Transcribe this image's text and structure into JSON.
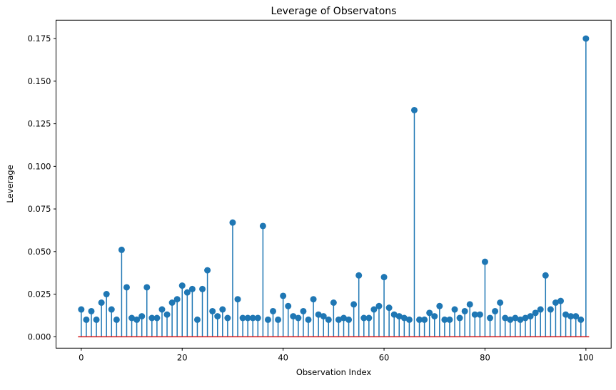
{
  "figure": {
    "background": "#ffffff",
    "title": "Leverage of Observatons",
    "xlabel": "Observation Index",
    "ylabel": "Leverage"
  },
  "chart_data": {
    "type": "stem",
    "title": "Leverage of Observatons",
    "xlabel": "Observation Index",
    "ylabel": "Leverage",
    "legend": null,
    "grid": false,
    "xlim": [
      -5,
      105
    ],
    "ylim": [
      -0.0067,
      0.1858
    ],
    "xtick_labels": [
      "0",
      "20",
      "40",
      "60",
      "80",
      "100"
    ],
    "xtick_values": [
      0,
      20,
      40,
      60,
      80,
      100
    ],
    "ytick_labels": [
      "0.000",
      "0.025",
      "0.050",
      "0.075",
      "0.100",
      "0.125",
      "0.150",
      "0.175"
    ],
    "ytick_values": [
      0.0,
      0.025,
      0.05,
      0.075,
      0.1,
      0.125,
      0.15,
      0.175
    ],
    "stem_color": "#1f77b4",
    "marker_color": "#1f77b4",
    "baseline_color": "#d62728",
    "baseline_value": 0.0,
    "x": [
      0,
      1,
      2,
      3,
      4,
      5,
      6,
      7,
      8,
      9,
      10,
      11,
      12,
      13,
      14,
      15,
      16,
      17,
      18,
      19,
      20,
      21,
      22,
      23,
      24,
      25,
      26,
      27,
      28,
      29,
      30,
      31,
      32,
      33,
      34,
      35,
      36,
      37,
      38,
      39,
      40,
      41,
      42,
      43,
      44,
      45,
      46,
      47,
      48,
      49,
      50,
      51,
      52,
      53,
      54,
      55,
      56,
      57,
      58,
      59,
      60,
      61,
      62,
      63,
      64,
      65,
      66,
      67,
      68,
      69,
      70,
      71,
      72,
      73,
      74,
      75,
      76,
      77,
      78,
      79,
      80,
      81,
      82,
      83,
      84,
      85,
      86,
      87,
      88,
      89,
      90,
      91,
      92,
      93,
      94,
      95,
      96,
      97,
      98,
      99,
      100
    ],
    "values": [
      0.016,
      0.01,
      0.015,
      0.01,
      0.02,
      0.025,
      0.016,
      0.01,
      0.051,
      0.029,
      0.011,
      0.01,
      0.012,
      0.029,
      0.011,
      0.011,
      0.016,
      0.013,
      0.02,
      0.022,
      0.03,
      0.026,
      0.028,
      0.01,
      0.028,
      0.039,
      0.015,
      0.012,
      0.016,
      0.011,
      0.067,
      0.022,
      0.011,
      0.011,
      0.011,
      0.011,
      0.065,
      0.01,
      0.015,
      0.01,
      0.024,
      0.018,
      0.012,
      0.011,
      0.015,
      0.01,
      0.022,
      0.013,
      0.012,
      0.01,
      0.02,
      0.01,
      0.011,
      0.01,
      0.019,
      0.036,
      0.011,
      0.011,
      0.016,
      0.018,
      0.035,
      0.017,
      0.013,
      0.012,
      0.011,
      0.01,
      0.133,
      0.01,
      0.01,
      0.014,
      0.012,
      0.018,
      0.01,
      0.01,
      0.016,
      0.011,
      0.015,
      0.019,
      0.013,
      0.013,
      0.044,
      0.011,
      0.015,
      0.02,
      0.011,
      0.01,
      0.011,
      0.01,
      0.011,
      0.012,
      0.014,
      0.016,
      0.036,
      0.016,
      0.02,
      0.021,
      0.013,
      0.012,
      0.012,
      0.01,
      0.175
    ]
  }
}
